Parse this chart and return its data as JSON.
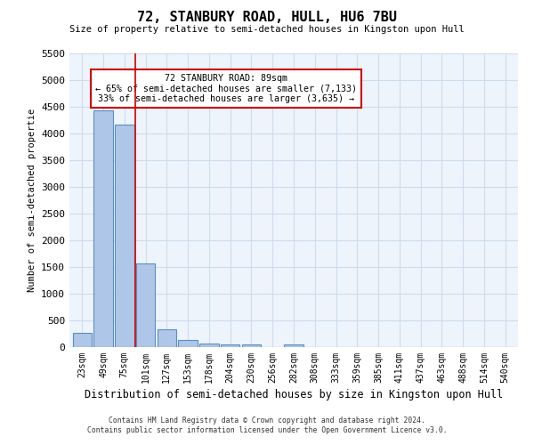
{
  "title": "72, STANBURY ROAD, HULL, HU6 7BU",
  "subtitle": "Size of property relative to semi-detached houses in Kingston upon Hull",
  "xlabel": "Distribution of semi-detached houses by size in Kingston upon Hull",
  "ylabel": "Number of semi-detached propertie",
  "footnote1": "Contains HM Land Registry data © Crown copyright and database right 2024.",
  "footnote2": "Contains public sector information licensed under the Open Government Licence v3.0.",
  "categories": [
    "23sqm",
    "49sqm",
    "75sqm",
    "101sqm",
    "127sqm",
    "153sqm",
    "178sqm",
    "204sqm",
    "230sqm",
    "256sqm",
    "282sqm",
    "308sqm",
    "333sqm",
    "359sqm",
    "385sqm",
    "411sqm",
    "437sqm",
    "463sqm",
    "488sqm",
    "514sqm",
    "540sqm"
  ],
  "values": [
    270,
    4430,
    4160,
    1560,
    330,
    140,
    70,
    50,
    45,
    0,
    55,
    0,
    0,
    0,
    0,
    0,
    0,
    0,
    0,
    0,
    0
  ],
  "bar_color": "#aec6e8",
  "bar_edge_color": "#5a8fc2",
  "grid_color": "#ccdded",
  "background_color": "#eef4fb",
  "red_line_x": 2.5,
  "annotation_line1": "72 STANBURY ROAD: 89sqm",
  "annotation_line2": "← 65% of semi-detached houses are smaller (7,133)",
  "annotation_line3": "33% of semi-detached houses are larger (3,635) →",
  "annotation_box_color": "#ffffff",
  "annotation_box_edge": "#cc0000",
  "ylim": [
    0,
    5500
  ],
  "yticks": [
    0,
    500,
    1000,
    1500,
    2000,
    2500,
    3000,
    3500,
    4000,
    4500,
    5000,
    5500
  ]
}
